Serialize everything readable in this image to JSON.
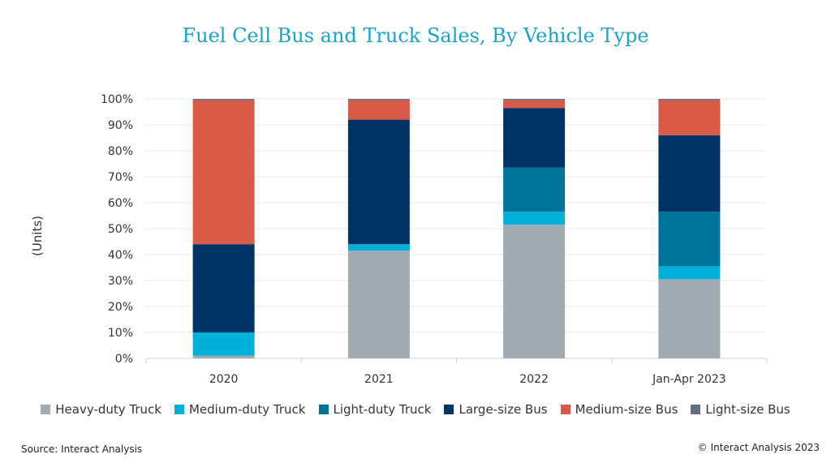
{
  "title": "Fuel Cell Bus and Truck Sales, By Vehicle Type",
  "source": "Source: Interact Analysis",
  "copyright": "© Interact Analysis 2023",
  "chart_data": {
    "type": "bar",
    "stacked": true,
    "ylabel": "(Units)",
    "ylim": [
      0,
      100
    ],
    "yticks": [
      "0%",
      "10%",
      "20%",
      "30%",
      "40%",
      "50%",
      "60%",
      "70%",
      "80%",
      "90%",
      "100%"
    ],
    "categories": [
      "2020",
      "2021",
      "2022",
      "Jan-Apr 2023"
    ],
    "legend_position": "bottom",
    "grid": true,
    "series": [
      {
        "name": "Heavy-duty Truck",
        "color": "#a1abb2",
        "values": [
          1,
          41.5,
          51.5,
          30.5
        ]
      },
      {
        "name": "Medium-duty Truck",
        "color": "#00b0d8",
        "values": [
          9,
          2.5,
          5,
          5
        ]
      },
      {
        "name": "Light-duty Truck",
        "color": "#00739c",
        "values": [
          0,
          0,
          17,
          21
        ]
      },
      {
        "name": "Large-size Bus",
        "color": "#023366",
        "values": [
          34,
          48,
          23,
          29.5
        ]
      },
      {
        "name": "Medium-size Bus",
        "color": "#d95b47",
        "values": [
          55.5,
          7.5,
          3,
          13.5
        ]
      },
      {
        "name": "Light-size Bus",
        "color": "#5f6f80",
        "values": [
          0.5,
          0.5,
          0.5,
          0.5
        ]
      }
    ]
  }
}
